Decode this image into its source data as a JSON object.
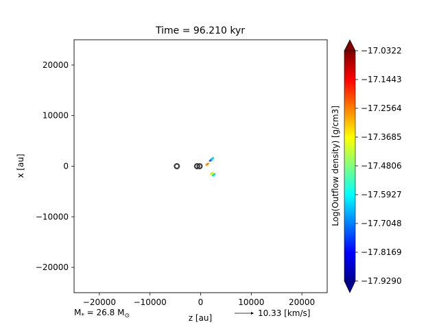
{
  "chart_data": {
    "type": "contour",
    "title": "Time = 96.210 kyr",
    "xlabel": "z [au]",
    "ylabel": "x [au]",
    "xlim": [
      -25000,
      25000
    ],
    "ylim": [
      -25000,
      25000
    ],
    "xticks": [
      -20000,
      -10000,
      0,
      10000,
      20000
    ],
    "xtick_labels": [
      "−20000",
      "−10000",
      "0",
      "10000",
      "20000"
    ],
    "yticks": [
      20000,
      10000,
      0,
      -10000,
      -20000
    ],
    "ytick_labels": [
      "20000",
      "10000",
      "0",
      "−10000",
      "−20000"
    ],
    "grid": false,
    "colorbar": {
      "label": "Log(Outflow density) [g/cm3]",
      "colormap": "jet",
      "min": -17.929,
      "max": -17.0322,
      "ticks": [
        -17.0322,
        -17.1443,
        -17.2564,
        -17.3685,
        -17.4806,
        -17.5927,
        -17.7048,
        -17.8169,
        -17.929
      ],
      "tick_labels": [
        "−17.0322",
        "−17.1443",
        "−17.2564",
        "−17.3685",
        "−17.4806",
        "−17.5927",
        "−17.7048",
        "−17.8169",
        "−17.9290"
      ],
      "extend": "both"
    },
    "outflow_features": [
      {
        "name": "upper-lobe",
        "z": 2000,
        "x": 1200,
        "color": "#1e5cff"
      },
      {
        "name": "upper-lobe-tip",
        "z": 2300,
        "x": 1500,
        "color": "#00d0ff"
      },
      {
        "name": "lower-lobe",
        "z": 2200,
        "x": -1400,
        "color": "#c8ff00"
      },
      {
        "name": "lower-lobe-tip",
        "z": 2600,
        "x": -1700,
        "color": "#00e0d0"
      },
      {
        "name": "core-band",
        "z": 1300,
        "x": 400,
        "color": "#ff8c00"
      }
    ],
    "sinks": [
      {
        "z": -4700,
        "x": 0
      },
      {
        "z": -700,
        "x": 0
      },
      {
        "z": -200,
        "x": 0
      }
    ],
    "annotations": {
      "mass_label": "M",
      "mass_subscript": "*",
      "mass_value": " = 26.8 M",
      "mass_unit_subscript": "⊙",
      "velocity_label": "10.33 [km/s]"
    }
  }
}
